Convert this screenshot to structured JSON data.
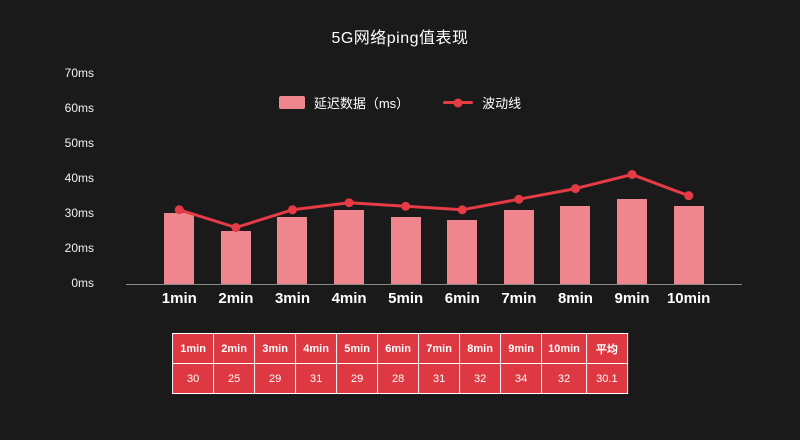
{
  "title": "5G网络ping值表现",
  "legend": {
    "bar_label": "延迟数据（ms）",
    "line_label": "波动线"
  },
  "colors": {
    "background": "#1a1a1a",
    "bar": "#ef858d",
    "line": "#e53b45",
    "table_bg": "#de3942",
    "table_border": "#ffffff",
    "text": "#ffffff",
    "axis_line": "#8a8a8a"
  },
  "chart_data": {
    "type": "bar",
    "title": "5G网络ping值表现",
    "categories": [
      "1min",
      "2min",
      "3min",
      "4min",
      "5min",
      "6min",
      "7min",
      "8min",
      "9min",
      "10min"
    ],
    "series": [
      {
        "name": "延迟数据（ms）",
        "type": "bar",
        "values": [
          30,
          25,
          29,
          31,
          29,
          28,
          31,
          32,
          34,
          32
        ]
      },
      {
        "name": "波动线",
        "type": "line",
        "values": [
          31,
          26,
          31,
          33,
          32,
          31,
          34,
          37,
          41,
          35
        ]
      }
    ],
    "xlabel": "",
    "ylabel": "",
    "y_ticks": [
      "70ms",
      "60ms",
      "50ms",
      "40ms",
      "30ms",
      "20ms",
      "0ms"
    ],
    "ylim": [
      0,
      70
    ],
    "grid": false,
    "legend_position": "top"
  },
  "table": {
    "headers": [
      "1min",
      "2min",
      "3min",
      "4min",
      "5min",
      "6min",
      "7min",
      "8min",
      "9min",
      "10min",
      "平均"
    ],
    "values": [
      "30",
      "25",
      "29",
      "31",
      "29",
      "28",
      "31",
      "32",
      "34",
      "32",
      "30.1"
    ],
    "average_label": "平均",
    "average_value": "30.1"
  }
}
